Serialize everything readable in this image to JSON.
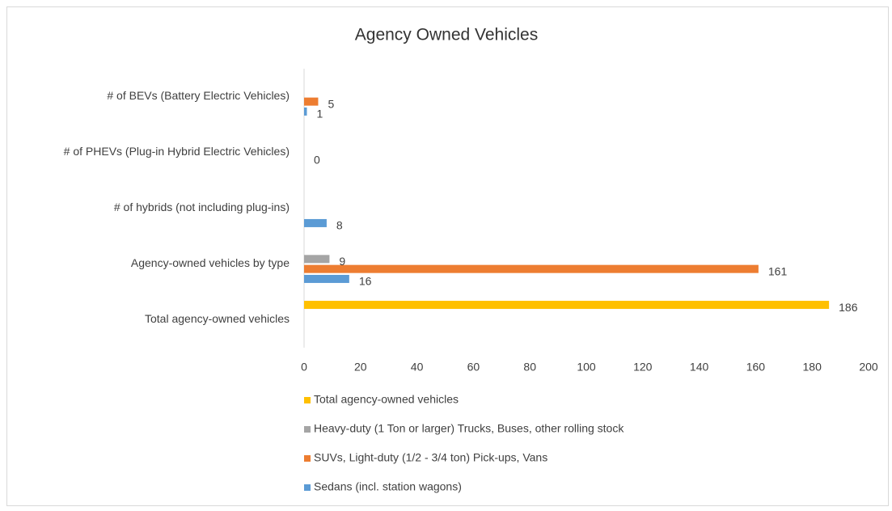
{
  "chart_data": {
    "type": "bar",
    "orientation": "horizontal",
    "title": "Agency Owned Vehicles",
    "categories": [
      "# of BEVs (Battery Electric Vehicles)",
      "# of PHEVs (Plug-in Hybrid Electric Vehicles)",
      "# of hybrids (not including plug-ins)",
      "Agency-owned vehicles by type",
      "Total agency-owned vehicles"
    ],
    "series": [
      {
        "name": "Sedans (incl. station wagons)",
        "color": "#5b9bd5",
        "values": [
          1,
          null,
          8,
          16,
          null
        ]
      },
      {
        "name": "SUVs, Light-duty (1/2 - 3/4 ton) Pick-ups, Vans",
        "color": "#ed7d31",
        "values": [
          5,
          0,
          null,
          161,
          null
        ]
      },
      {
        "name": "Heavy-duty (1 Ton or larger) Trucks, Buses, other rolling stock",
        "color": "#a5a5a5",
        "values": [
          null,
          null,
          null,
          9,
          null
        ]
      },
      {
        "name": "Total agency-owned vehicles",
        "color": "#ffc000",
        "values": [
          null,
          null,
          null,
          null,
          186
        ]
      }
    ],
    "xlim": [
      0,
      200
    ],
    "xticks": [
      0,
      20,
      40,
      60,
      80,
      100,
      120,
      140,
      160,
      180,
      200
    ],
    "legend": "bottom",
    "grid": false
  }
}
